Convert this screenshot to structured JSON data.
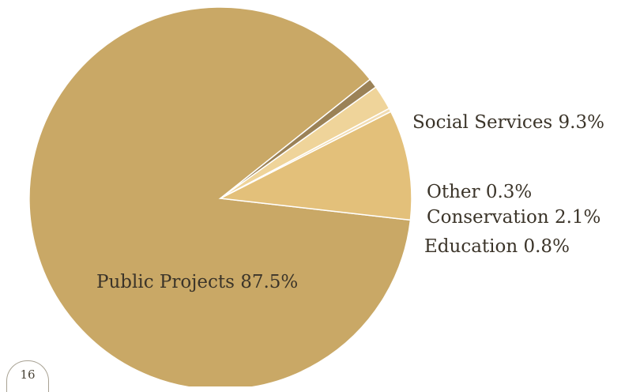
{
  "page_number": "16",
  "chart_data": {
    "type": "pie",
    "slices": [
      {
        "name": "Public Projects",
        "value": 87.5,
        "label": "Public Projects 87.5%",
        "color": "#c9a866"
      },
      {
        "name": "Social Services",
        "value": 9.3,
        "label": "Social Services 9.3%",
        "color": "#e3c07a"
      },
      {
        "name": "Other",
        "value": 0.3,
        "label": "Other 0.3%",
        "color": "#f1dcb2"
      },
      {
        "name": "Conservation",
        "value": 2.1,
        "label": "Conservation 2.1%",
        "color": "#efd49a"
      },
      {
        "name": "Education",
        "value": 0.8,
        "label": "Education 0.8%",
        "color": "#9b8257"
      }
    ]
  }
}
